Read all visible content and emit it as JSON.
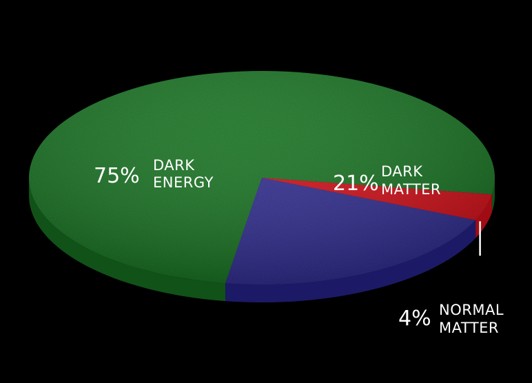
{
  "chart_data": {
    "type": "pie",
    "style": "3d-tilted",
    "background": "#000000",
    "slices": [
      {
        "percent_label": "75%",
        "label_lines": [
          "DARK",
          "ENERGY"
        ],
        "value": 75,
        "color": "#1e7a28",
        "side_color": "#115218"
      },
      {
        "percent_label": "21%",
        "label_lines": [
          "DARK",
          "MATTER"
        ],
        "value": 21,
        "color": "#36339a",
        "side_color": "#1c1a66"
      },
      {
        "percent_label": "4%",
        "label_lines": [
          "NORMAL",
          "MATTER"
        ],
        "value": 4,
        "color": "#e0141e",
        "side_color": "#a00c14"
      }
    ]
  }
}
